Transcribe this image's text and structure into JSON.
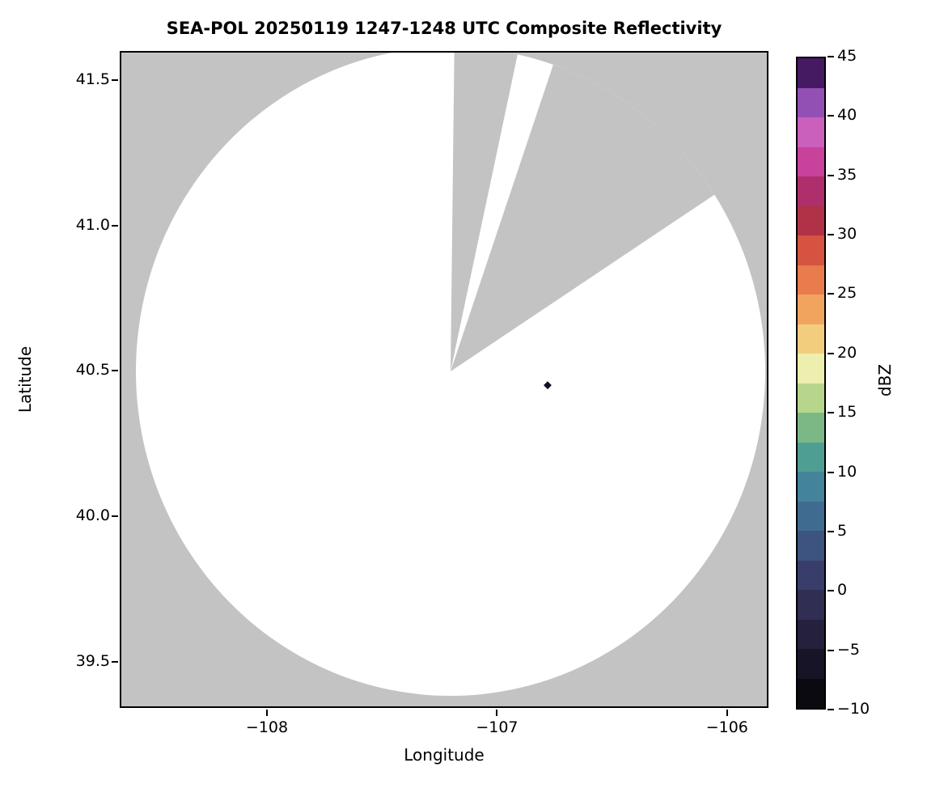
{
  "title": "SEA-POL 20250119 1247-1248 UTC Composite Reflectivity",
  "axes": {
    "xlabel": "Longitude",
    "ylabel": "Latitude",
    "x_ticks": [
      {
        "label": "−108",
        "value": -108
      },
      {
        "label": "−107",
        "value": -107
      },
      {
        "label": "−106",
        "value": -106
      }
    ],
    "y_ticks": [
      {
        "label": "39.5",
        "value": 39.5
      },
      {
        "label": "40.0",
        "value": 40.0
      },
      {
        "label": "40.5",
        "value": 40.5
      },
      {
        "label": "41.0",
        "value": 41.0
      },
      {
        "label": "41.5",
        "value": 41.5
      }
    ]
  },
  "colorbar": {
    "label": "dBZ",
    "min": -10,
    "max": 45,
    "ticks": [
      {
        "label": "45",
        "value": 45
      },
      {
        "label": "40",
        "value": 40
      },
      {
        "label": "35",
        "value": 35
      },
      {
        "label": "30",
        "value": 30
      },
      {
        "label": "25",
        "value": 25
      },
      {
        "label": "20",
        "value": 20
      },
      {
        "label": "15",
        "value": 15
      },
      {
        "label": "10",
        "value": 10
      },
      {
        "label": "5",
        "value": 5
      },
      {
        "label": "0",
        "value": 0
      },
      {
        "label": "−5",
        "value": -5
      },
      {
        "label": "−10",
        "value": -10
      }
    ],
    "segment_colors_bottom_to_top": [
      "#0a0a10",
      "#171428",
      "#25213c",
      "#302e53",
      "#383e69",
      "#3d5380",
      "#3f6b90",
      "#43849b",
      "#4f9e93",
      "#7cb886",
      "#b7d68b",
      "#ecefae",
      "#f3cd7e",
      "#f0a45e",
      "#e87c4c",
      "#d55340",
      "#b13147",
      "#ad2f6b",
      "#c8419b",
      "#cb5fbc",
      "#9350b4",
      "#461a63"
    ]
  },
  "chart_data": {
    "type": "heatmap",
    "title": "SEA-POL 20250119 1247-1248 UTC Composite Reflectivity",
    "xlabel": "Longitude",
    "ylabel": "Latitude",
    "xlim": [
      -108.64,
      -105.82
    ],
    "ylim": [
      39.34,
      41.6
    ],
    "x_ticks": [
      -108,
      -107,
      -106
    ],
    "y_ticks": [
      39.5,
      40.0,
      40.5,
      41.0,
      41.5
    ],
    "grid": false,
    "legend": "none",
    "colorbar_label": "dBZ",
    "colorbar_range": [
      -10,
      45
    ],
    "colorbar_tick_step": 5,
    "no_data_color": "#c3c3c3",
    "coverage_fill_color": "#ffffff",
    "radar_center": {
      "lon": -107.2,
      "lat": 40.5
    },
    "coverage_radius_deg_lat": 1.12,
    "blocked_sectors_azimuth_deg": [
      [
        1,
        12.5
      ],
      [
        19,
        57
      ]
    ],
    "echoes": [
      {
        "lon": -106.78,
        "lat": 40.45,
        "color": "#10102a",
        "marker": "small dark diamond"
      }
    ]
  }
}
